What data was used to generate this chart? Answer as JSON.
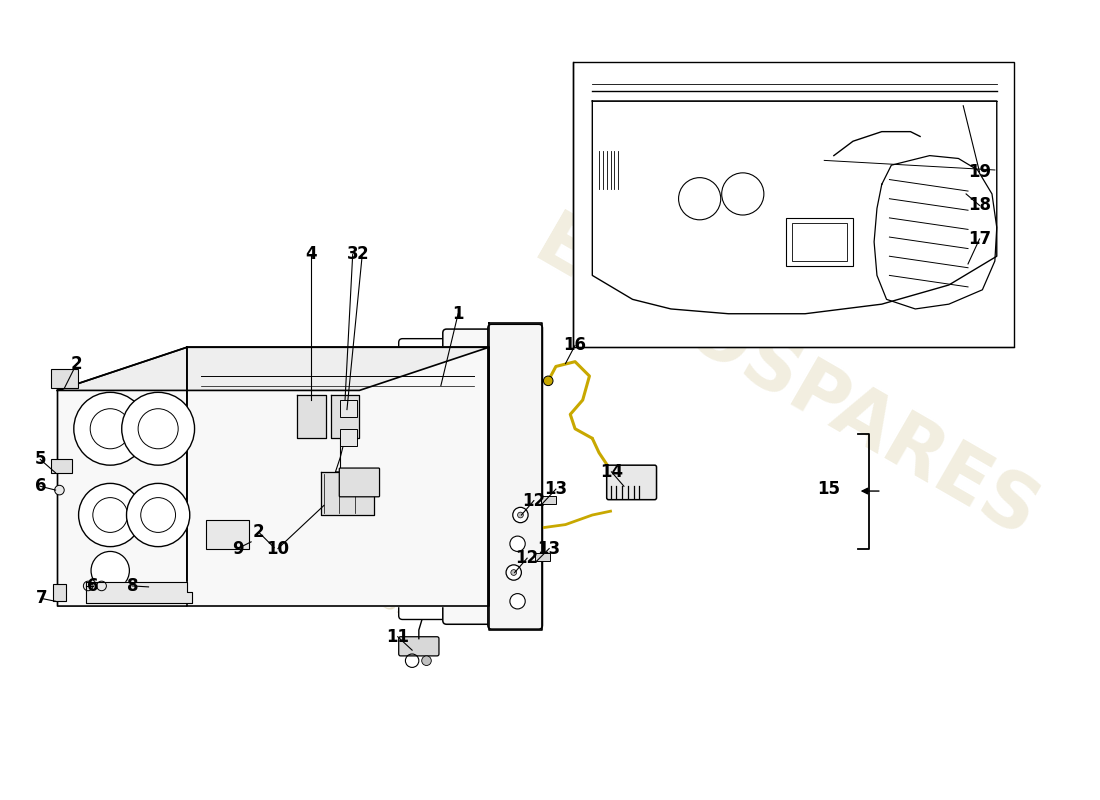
{
  "bg_color": "#ffffff",
  "line_color": "#000000",
  "text_color": "#000000",
  "label_fontsize": 12,
  "watermark_color1": "#d4c89a",
  "watermark_color2": "#b8a870",
  "accent_yellow": "#c8a000",
  "lw_main": 1.2,
  "lw_thin": 0.7,
  "lw_leader": 0.8
}
